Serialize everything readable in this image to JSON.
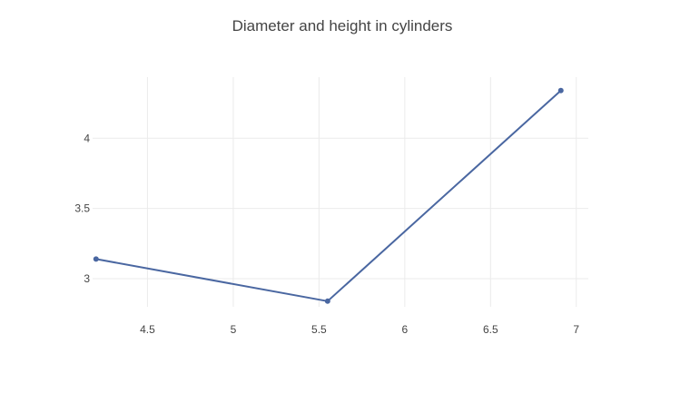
{
  "chart_data": {
    "type": "line",
    "title": "Diameter and height in cylinders",
    "xlabel": "",
    "ylabel": "",
    "x": [
      4.2,
      5.55,
      6.91
    ],
    "series": [
      {
        "values": [
          3.14,
          2.84,
          4.34
        ]
      }
    ],
    "xlim": [
      4.18,
      7.07
    ],
    "ylim": [
      2.8,
      4.435
    ],
    "xticks": [
      4.5,
      5,
      5.5,
      6,
      6.5,
      7
    ],
    "xtick_labels": [
      "4.5",
      "5",
      "5.5",
      "6",
      "6.5",
      "7"
    ],
    "yticks": [
      3,
      3.5,
      4
    ],
    "ytick_labels": [
      "3",
      "3.5",
      "4"
    ],
    "grid": true,
    "legend": "none",
    "colors": {
      "line": "#4a67a1",
      "marker": "#4a67a1",
      "grid": "#ebebeb",
      "text": "#444444"
    }
  }
}
